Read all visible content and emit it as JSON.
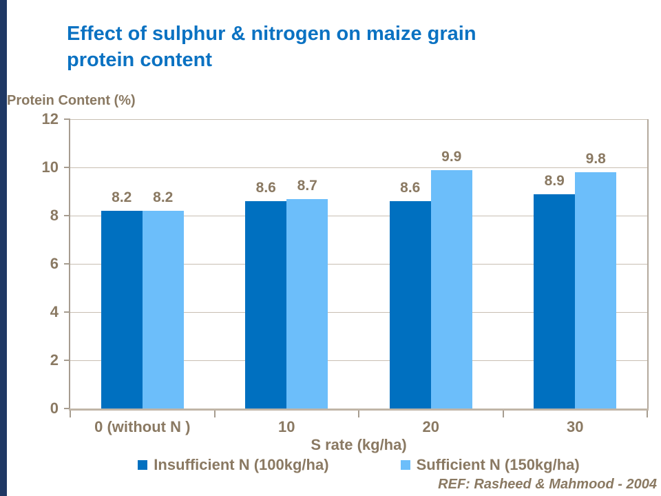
{
  "accent": {
    "left_bar_color": "#1F3864"
  },
  "title": {
    "line1": "Effect of sulphur & nitrogen on maize grain",
    "line2": "protein content",
    "color": "#0B72C2"
  },
  "chart_data": {
    "type": "bar",
    "title": "Effect of sulphur & nitrogen on maize grain protein content",
    "ylabel": "Protein Content (%)",
    "xlabel": "S rate (kg/ha)",
    "categories": [
      "0 (without N )",
      "10",
      "20",
      "30"
    ],
    "series": [
      {
        "name": "Insufficient N (100kg/ha)",
        "color": "#0070C0",
        "values": [
          8.2,
          8.6,
          8.6,
          8.9
        ]
      },
      {
        "name": "Sufficient N (150kg/ha)",
        "color": "#6CBEFA",
        "values": [
          8.2,
          8.7,
          9.9,
          9.8
        ]
      }
    ],
    "ylim": [
      0,
      12
    ],
    "ytick_step": 2,
    "yticks": [
      0,
      2,
      4,
      6,
      8,
      10,
      12
    ],
    "grid": true,
    "legend_position": "bottom",
    "data_labels": true
  },
  "footer": {
    "ref": "REF: Rasheed & Mahmood - 2004"
  },
  "colors": {
    "text_brown": "#8A7962",
    "gridline": "#C8BEB2",
    "axis_line": "#A69C8F",
    "baseline": "#C0B5A7"
  }
}
